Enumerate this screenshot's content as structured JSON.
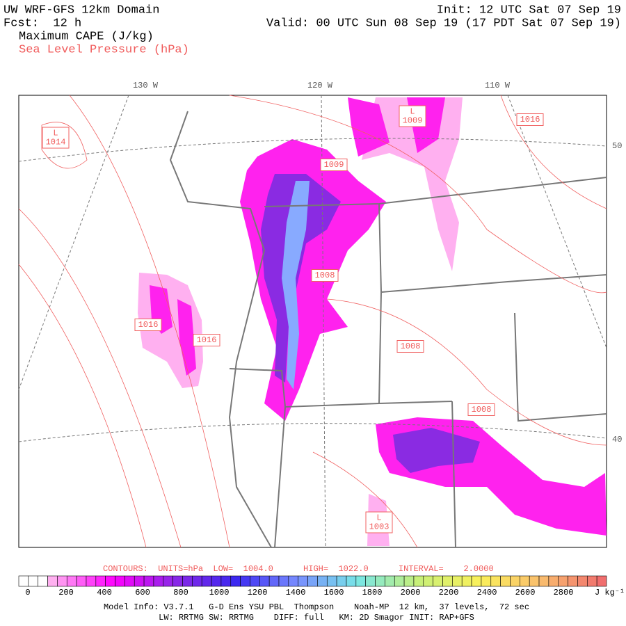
{
  "header": {
    "model": "UW WRF-GFS 12km Domain",
    "forecast": "Fcst:  12 h",
    "field": "Maximum CAPE (J/kg)",
    "contour_field": "Sea Level Pressure (hPa)",
    "init": "Init: 12 UTC Sat 07 Sep 19",
    "valid": "Valid: 00 UTC Sun 08 Sep 19 (17 PDT Sat 07 Sep 19)"
  },
  "map": {
    "longitude_labels": [
      "130 W",
      "120 W",
      "110 W"
    ],
    "latitude_labels": [
      "50",
      "40"
    ],
    "pressure_labels": [
      {
        "text": "L\n1014"
      },
      {
        "text": "L\n1009"
      },
      {
        "text": "1016"
      },
      {
        "text": "1009"
      },
      {
        "text": "1008"
      },
      {
        "text": "1016"
      },
      {
        "text": "1016"
      },
      {
        "text": "1008"
      },
      {
        "text": "1008"
      },
      {
        "text": "L\n1003"
      }
    ]
  },
  "contours": "CONTOURS:  UNITS=hPa  LOW=  1004.0      HIGH=  1022.0      INTERVAL=    2.0000",
  "colorbar": {
    "labels": [
      "0",
      "200",
      "400",
      "600",
      "800",
      "1000",
      "1200",
      "1400",
      "1600",
      "1800",
      "2000",
      "2200",
      "2400",
      "2600",
      "2800"
    ],
    "unit": "J kg⁻¹"
  },
  "footer": {
    "line1": "Model Info: V3.7.1   G-D Ens YSU PBL  Thompson    Noah-MP  12 km,  37 levels,  72 sec",
    "line2": "LW: RRTMG SW: RRTMG    DIFF: full   KM: 2D Smagor INIT: RAP+GFS"
  }
}
